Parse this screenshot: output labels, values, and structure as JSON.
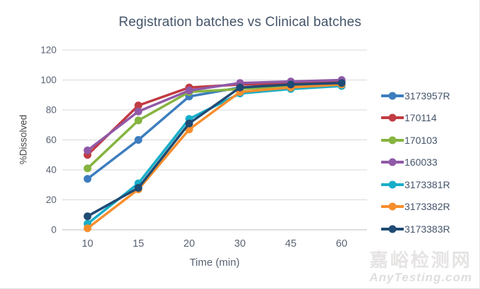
{
  "chart_data": {
    "type": "line",
    "title": "Registration batches vs Clinical batches",
    "xlabel": "Time (min)",
    "ylabel": "%Dissolved",
    "categories": [
      "10",
      "15",
      "20",
      "30",
      "45",
      "60"
    ],
    "ylim": [
      0,
      120
    ],
    "yticks": [
      0,
      20,
      40,
      60,
      80,
      100,
      120
    ],
    "grid": "horizontal",
    "legend_position": "right",
    "series": [
      {
        "name": "3173957R",
        "color": "#3d7dbf",
        "values": [
          34,
          60,
          89,
          95,
          97,
          98
        ]
      },
      {
        "name": "170114",
        "color": "#c13b43",
        "values": [
          50,
          83,
          95,
          97,
          98,
          99
        ]
      },
      {
        "name": "170103",
        "color": "#86b440",
        "values": [
          41,
          73,
          92,
          94,
          96,
          97
        ]
      },
      {
        "name": "160033",
        "color": "#9059a7",
        "values": [
          53,
          79,
          93,
          98,
          99,
          100
        ]
      },
      {
        "name": "3173381R",
        "color": "#17aec9",
        "values": [
          4,
          31,
          74,
          91,
          94,
          96
        ]
      },
      {
        "name": "3173382R",
        "color": "#f78e2d",
        "values": [
          1,
          27,
          67,
          92,
          95,
          97
        ]
      },
      {
        "name": "3173383R",
        "color": "#1f4b74",
        "values": [
          9,
          28,
          71,
          95,
          97,
          98
        ]
      }
    ]
  },
  "colors": {
    "title_text": "#44546a",
    "axis_text": "#596273",
    "gridline": "#d9d9d9",
    "axis_line": "#bfbfbf"
  },
  "watermark": {
    "line1": "嘉峪检测网",
    "line2": "AnyTesting.com"
  }
}
